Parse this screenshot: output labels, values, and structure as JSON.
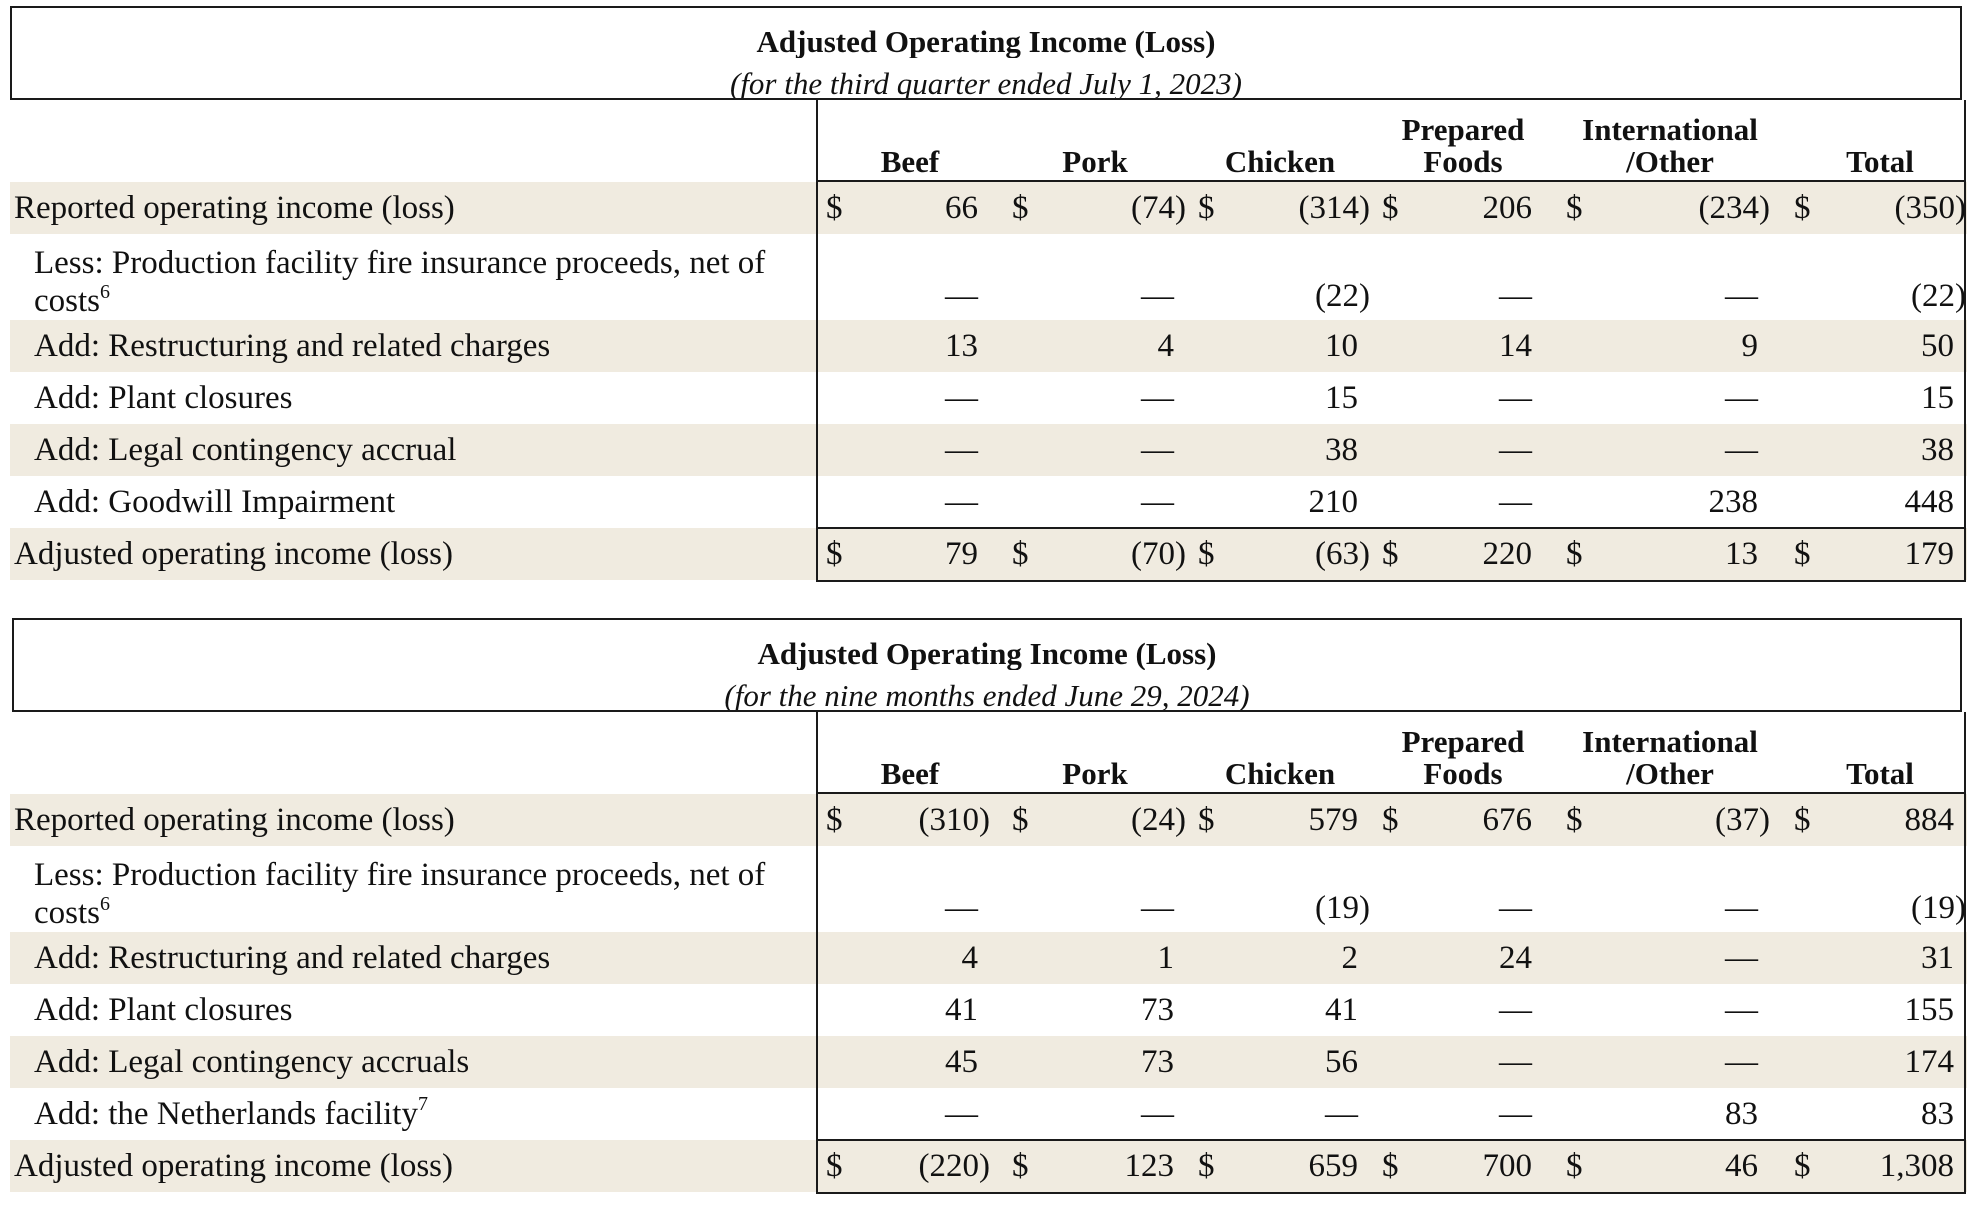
{
  "tables": [
    {
      "title": "Adjusted Operating Income (Loss)",
      "subtitle": "(for the third quarter ended July 1, 2023)",
      "columns": [
        {
          "line1": "",
          "line2": "Beef"
        },
        {
          "line1": "",
          "line2": "Pork"
        },
        {
          "line1": "",
          "line2": "Chicken"
        },
        {
          "line1": "Prepared",
          "line2": "Foods"
        },
        {
          "line1": "International",
          "line2": "/Other"
        },
        {
          "line1": "",
          "line2": "Total"
        }
      ],
      "rows": [
        {
          "label": "Reported operating income (loss)",
          "sup": "",
          "shaded": true,
          "dollar": true,
          "values": [
            "66",
            "(74)",
            "(314)",
            "206",
            "(234)",
            "(350)"
          ]
        },
        {
          "label": "Less: Production facility fire insurance proceeds, net of costs",
          "sup": "6",
          "shaded": false,
          "dollar": false,
          "values": [
            "—",
            "—",
            "(22)",
            "—",
            "—",
            "(22)"
          ]
        },
        {
          "label": "Add: Restructuring and related charges",
          "sup": "",
          "shaded": true,
          "dollar": false,
          "values": [
            "13",
            "4",
            "10",
            "14",
            "9",
            "50"
          ]
        },
        {
          "label": "Add: Plant closures",
          "sup": "",
          "shaded": false,
          "dollar": false,
          "values": [
            "—",
            "—",
            "15",
            "—",
            "—",
            "15"
          ]
        },
        {
          "label": "Add: Legal contingency accrual",
          "sup": "",
          "shaded": true,
          "dollar": false,
          "values": [
            "—",
            "—",
            "38",
            "—",
            "—",
            "38"
          ]
        },
        {
          "label": "Add: Goodwill Impairment",
          "sup": "",
          "shaded": false,
          "dollar": false,
          "values": [
            "—",
            "—",
            "210",
            "—",
            "238",
            "448"
          ]
        },
        {
          "label": "Adjusted operating income (loss)",
          "sup": "",
          "shaded": true,
          "dollar": true,
          "values": [
            "79",
            "(70)",
            "(63)",
            "220",
            "13",
            "179"
          ]
        }
      ]
    },
    {
      "title": "Adjusted Operating Income (Loss)",
      "subtitle": "(for the nine months ended June 29, 2024)",
      "columns": [
        {
          "line1": "",
          "line2": "Beef"
        },
        {
          "line1": "",
          "line2": "Pork"
        },
        {
          "line1": "",
          "line2": "Chicken"
        },
        {
          "line1": "Prepared",
          "line2": "Foods"
        },
        {
          "line1": "International",
          "line2": "/Other"
        },
        {
          "line1": "",
          "line2": "Total"
        }
      ],
      "rows": [
        {
          "label": "Reported operating income (loss)",
          "sup": "",
          "shaded": true,
          "dollar": true,
          "values": [
            "(310)",
            "(24)",
            "579",
            "676",
            "(37)",
            "884"
          ]
        },
        {
          "label": "Less: Production facility fire insurance proceeds, net of costs",
          "sup": "6",
          "shaded": false,
          "dollar": false,
          "values": [
            "—",
            "—",
            "(19)",
            "—",
            "—",
            "(19)"
          ]
        },
        {
          "label": "Add: Restructuring and related charges",
          "sup": "",
          "shaded": true,
          "dollar": false,
          "values": [
            "4",
            "1",
            "2",
            "24",
            "—",
            "31"
          ]
        },
        {
          "label": "Add: Plant closures",
          "sup": "",
          "shaded": false,
          "dollar": false,
          "values": [
            "41",
            "73",
            "41",
            "—",
            "—",
            "155"
          ]
        },
        {
          "label": "Add: Legal contingency accruals",
          "sup": "",
          "shaded": true,
          "dollar": false,
          "values": [
            "45",
            "73",
            "56",
            "—",
            "—",
            "174"
          ]
        },
        {
          "label": "Add: the Netherlands facility",
          "sup": "7",
          "shaded": false,
          "dollar": false,
          "values": [
            "—",
            "—",
            "—",
            "—",
            "83",
            "83"
          ]
        },
        {
          "label": "Adjusted operating income (loss)",
          "sup": "",
          "shaded": true,
          "dollar": true,
          "values": [
            "(220)",
            "123",
            "659",
            "700",
            "46",
            "1,308"
          ]
        }
      ]
    }
  ],
  "currency_symbol": "$"
}
